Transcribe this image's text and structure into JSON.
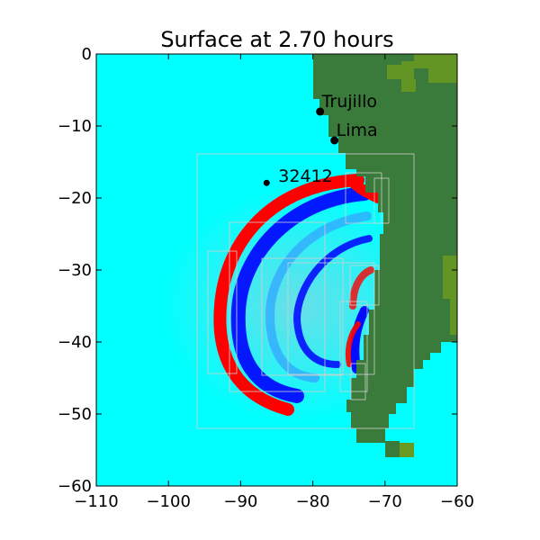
{
  "chart_data": {
    "type": "heatmap",
    "title": "Surface at 2.70 hours",
    "xlabel": "",
    "ylabel": "",
    "xlim": [
      -110,
      -60
    ],
    "ylim": [
      -60,
      0
    ],
    "xticks": [
      -110,
      -100,
      -90,
      -80,
      -70,
      -60
    ],
    "yticks": [
      0,
      -10,
      -20,
      -30,
      -40,
      -50,
      -60
    ],
    "xtick_labels": [
      "−110",
      "−100",
      "−90",
      "−80",
      "−70",
      "−60"
    ],
    "ytick_labels": [
      "0",
      "−10",
      "−20",
      "−30",
      "−40",
      "−50",
      "−60"
    ],
    "grid": false,
    "colors": {
      "water": "#00ffff",
      "land": "#3a7a3a",
      "land_high": "#6a9a20",
      "wave_crest": "#ff0000",
      "wave_trough": "#0000ff",
      "amr_patch": "#d0d0d0"
    },
    "stations": [
      {
        "name": "Trujillo",
        "lon": -79.0,
        "lat": -8.0
      },
      {
        "name": "Lima",
        "lon": -77.0,
        "lat": -12.0
      },
      {
        "name": "32412",
        "lon": -86.4,
        "lat": -17.9
      }
    ]
  }
}
